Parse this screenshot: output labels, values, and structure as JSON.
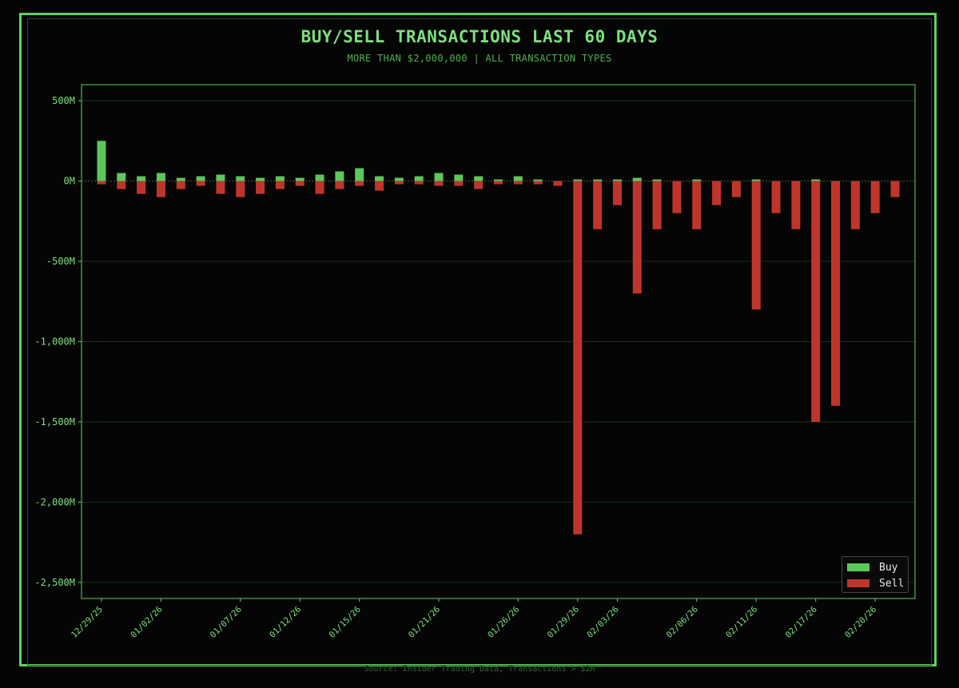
{
  "header": {
    "title": "BUY/SELL TRANSACTIONS LAST 60 DAYS",
    "subtitle": "MORE THAN $2,000,000  |  ALL TRANSACTION TYPES"
  },
  "footer": {
    "source": "Source: Insider Trading Data, Transactions > $2M"
  },
  "colors": {
    "background": "#050505",
    "frame": "#5fd35f",
    "buy": "#5cc85c",
    "sell": "#c0352b",
    "text": "#7de07d"
  },
  "legend": {
    "items": [
      {
        "label": "Buy",
        "color": "#5cc85c"
      },
      {
        "label": "Sell",
        "color": "#c0352b"
      }
    ]
  },
  "chart_data": {
    "type": "bar",
    "title": "BUY/SELL TRANSACTIONS LAST 60 DAYS",
    "subtitle": "MORE THAN $2,000,000  |  ALL TRANSACTION TYPES",
    "ylim": [
      -2600,
      600
    ],
    "yticks": [
      500,
      0,
      -500,
      -1000,
      -1500,
      -2000,
      -2500
    ],
    "ytick_labels": [
      "500M",
      "0M",
      "-500M",
      "-1,000M",
      "-1,500M",
      "-2,000M",
      "-2,500M"
    ],
    "x_tick_labels": [
      "12/29/25",
      "01/02/26",
      "01/07/26",
      "01/12/26",
      "01/15/26",
      "01/21/26",
      "01/26/26",
      "01/29/26",
      "02/03/26",
      "02/06/26",
      "02/11/26",
      "02/17/26",
      "02/20/26"
    ],
    "x_tick_bar_index": [
      0,
      3,
      7,
      10,
      13,
      17,
      21,
      24,
      26,
      30,
      33,
      36,
      39
    ],
    "grid": true,
    "legend_position": "bottom-right",
    "units": "millions USD",
    "series": [
      {
        "name": "Buy",
        "values": [
          250,
          50,
          30,
          50,
          20,
          30,
          40,
          30,
          20,
          30,
          20,
          40,
          60,
          80,
          30,
          20,
          30,
          50,
          40,
          30,
          10,
          30,
          10,
          0,
          10,
          10,
          10,
          20,
          10,
          0,
          10,
          0,
          0,
          10,
          0,
          0,
          10,
          0,
          0,
          0,
          0
        ]
      },
      {
        "name": "Sell",
        "values": [
          -20,
          -50,
          -80,
          -100,
          -50,
          -30,
          -80,
          -100,
          -80,
          -50,
          -30,
          -80,
          -50,
          -30,
          -60,
          -20,
          -20,
          -30,
          -30,
          -50,
          -20,
          -20,
          -20,
          -30,
          -2200,
          -300,
          -150,
          -700,
          -300,
          -200,
          -300,
          -150,
          -100,
          -800,
          -200,
          -300,
          -1500,
          -1400,
          -300,
          -200,
          -100
        ]
      }
    ]
  }
}
